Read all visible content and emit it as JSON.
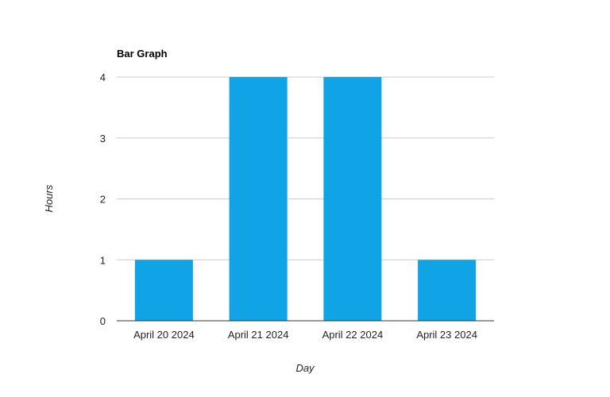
{
  "chart_data": {
    "type": "bar",
    "title": "Bar Graph",
    "xlabel": "Day",
    "ylabel": "Hours",
    "categories": [
      "April 20 2024",
      "April 21 2024",
      "April 22 2024",
      "April 23 2024"
    ],
    "values": [
      1,
      4,
      4,
      1
    ],
    "ylim": [
      0,
      4
    ],
    "yticks": [
      0,
      1,
      2,
      3,
      4
    ],
    "grid": true,
    "bar_color": "#10a3e6"
  }
}
